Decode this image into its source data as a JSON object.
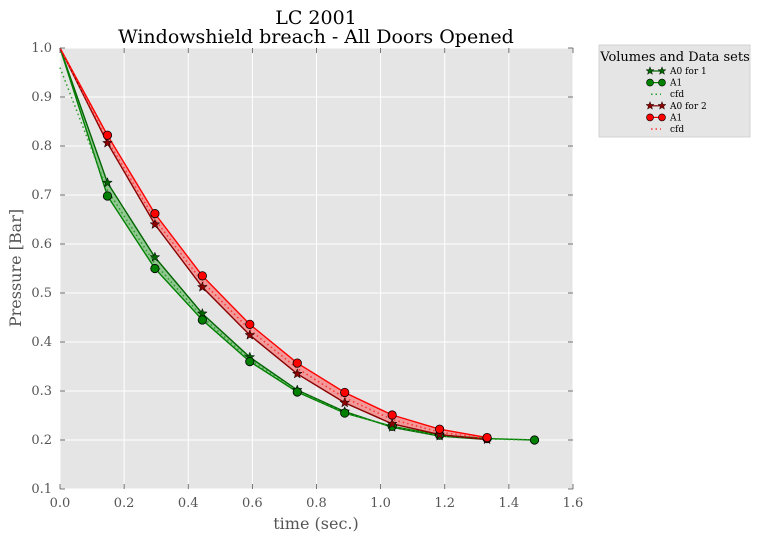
{
  "chart_data": {
    "type": "line",
    "title": "LC 2001",
    "subtitle": "Windowshield breach - All Doors Opened",
    "xlabel": "time (sec.)",
    "ylabel": "Pressure [Bar]",
    "xlim": [
      0.0,
      1.6
    ],
    "ylim": [
      0.1,
      1.0
    ],
    "xticks": [
      "0.0",
      "0.2",
      "0.4",
      "0.6",
      "0.8",
      "1.0",
      "1.2",
      "1.4",
      "1.6"
    ],
    "yticks": [
      "0.1",
      "0.2",
      "0.3",
      "0.4",
      "0.5",
      "0.6",
      "0.7",
      "0.8",
      "0.9",
      "1.0"
    ],
    "grid": true,
    "legend": {
      "title": "Volumes and Data sets",
      "placement": "outside-right",
      "entries": [
        "A0 for 1",
        "A1",
        "cfd",
        "A0 for 2",
        "A1",
        "cfd"
      ]
    },
    "series": [
      {
        "name": "A0 for 1",
        "color": "#006400",
        "marker": "star",
        "x": [
          0.0,
          0.148,
          0.296,
          0.444,
          0.592,
          0.74,
          0.888,
          1.036,
          1.184,
          1.332
        ],
        "y": [
          1.0,
          0.725,
          0.573,
          0.458,
          0.369,
          0.302,
          0.258,
          0.226,
          0.208,
          0.201
        ]
      },
      {
        "name": "A1",
        "color": "#008000",
        "marker": "circle",
        "x": [
          0.0,
          0.148,
          0.296,
          0.444,
          0.592,
          0.74,
          0.888,
          1.036,
          1.184,
          1.332,
          1.48
        ],
        "y": [
          1.0,
          0.698,
          0.55,
          0.445,
          0.36,
          0.298,
          0.255,
          0.228,
          0.21,
          0.203,
          0.2
        ]
      },
      {
        "name": "cfd",
        "color": "#2a9d2a",
        "marker": "dotted",
        "x": [
          0.0,
          0.148,
          0.296,
          0.444,
          0.592,
          0.74,
          0.888,
          1.036,
          1.184,
          1.332,
          1.48
        ],
        "y": [
          0.96,
          0.71,
          0.56,
          0.451,
          0.364,
          0.3,
          0.256,
          0.227,
          0.209,
          0.202,
          0.2
        ]
      },
      {
        "name": "A0 for 2",
        "color": "#8b0000",
        "marker": "star",
        "x": [
          0.0,
          0.148,
          0.296,
          0.444,
          0.592,
          0.74,
          0.888,
          1.036,
          1.184,
          1.332
        ],
        "y": [
          1.0,
          0.806,
          0.64,
          0.512,
          0.414,
          0.335,
          0.276,
          0.233,
          0.211,
          0.201
        ]
      },
      {
        "name": "A1",
        "color": "#ff0000",
        "marker": "circle",
        "x": [
          0.0,
          0.148,
          0.296,
          0.444,
          0.592,
          0.74,
          0.888,
          1.036,
          1.184,
          1.332
        ],
        "y": [
          1.0,
          0.822,
          0.662,
          0.535,
          0.436,
          0.357,
          0.297,
          0.251,
          0.222,
          0.205
        ]
      },
      {
        "name": "cfd",
        "color": "#ff3030",
        "marker": "dotted",
        "x": [
          0.0,
          0.148,
          0.296,
          0.444,
          0.592,
          0.74,
          0.888,
          1.036,
          1.184,
          1.332
        ],
        "y": [
          1.0,
          0.812,
          0.65,
          0.523,
          0.425,
          0.346,
          0.286,
          0.242,
          0.216,
          0.203
        ]
      }
    ]
  }
}
